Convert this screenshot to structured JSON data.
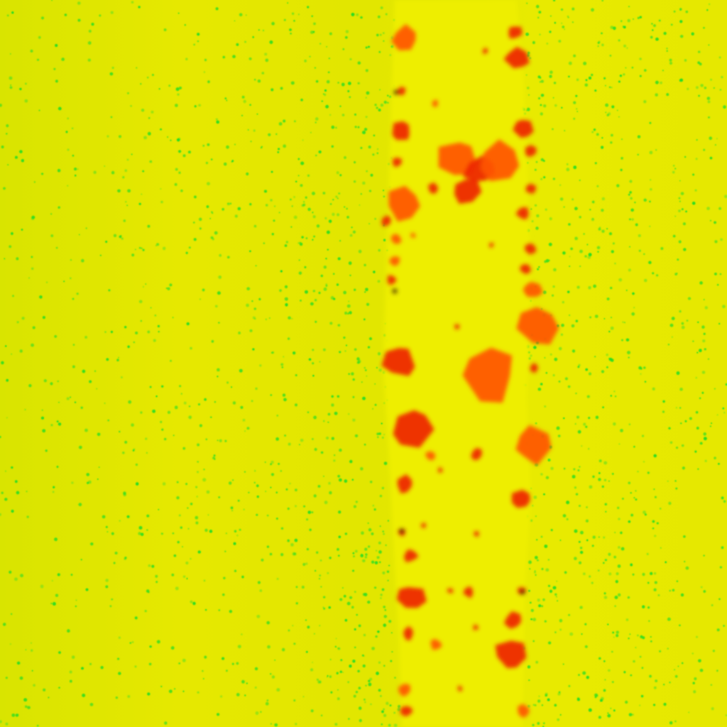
{
  "image": {
    "kind": "abstract-texture",
    "palette": {
      "background_yellow": "#e8e800",
      "band_yellow": "#f0f000",
      "speckle_green": "#22dd22",
      "blob_red": "#ee2200",
      "blob_orange": "#ff5500",
      "dark_spot": "#4a2a00"
    }
  }
}
